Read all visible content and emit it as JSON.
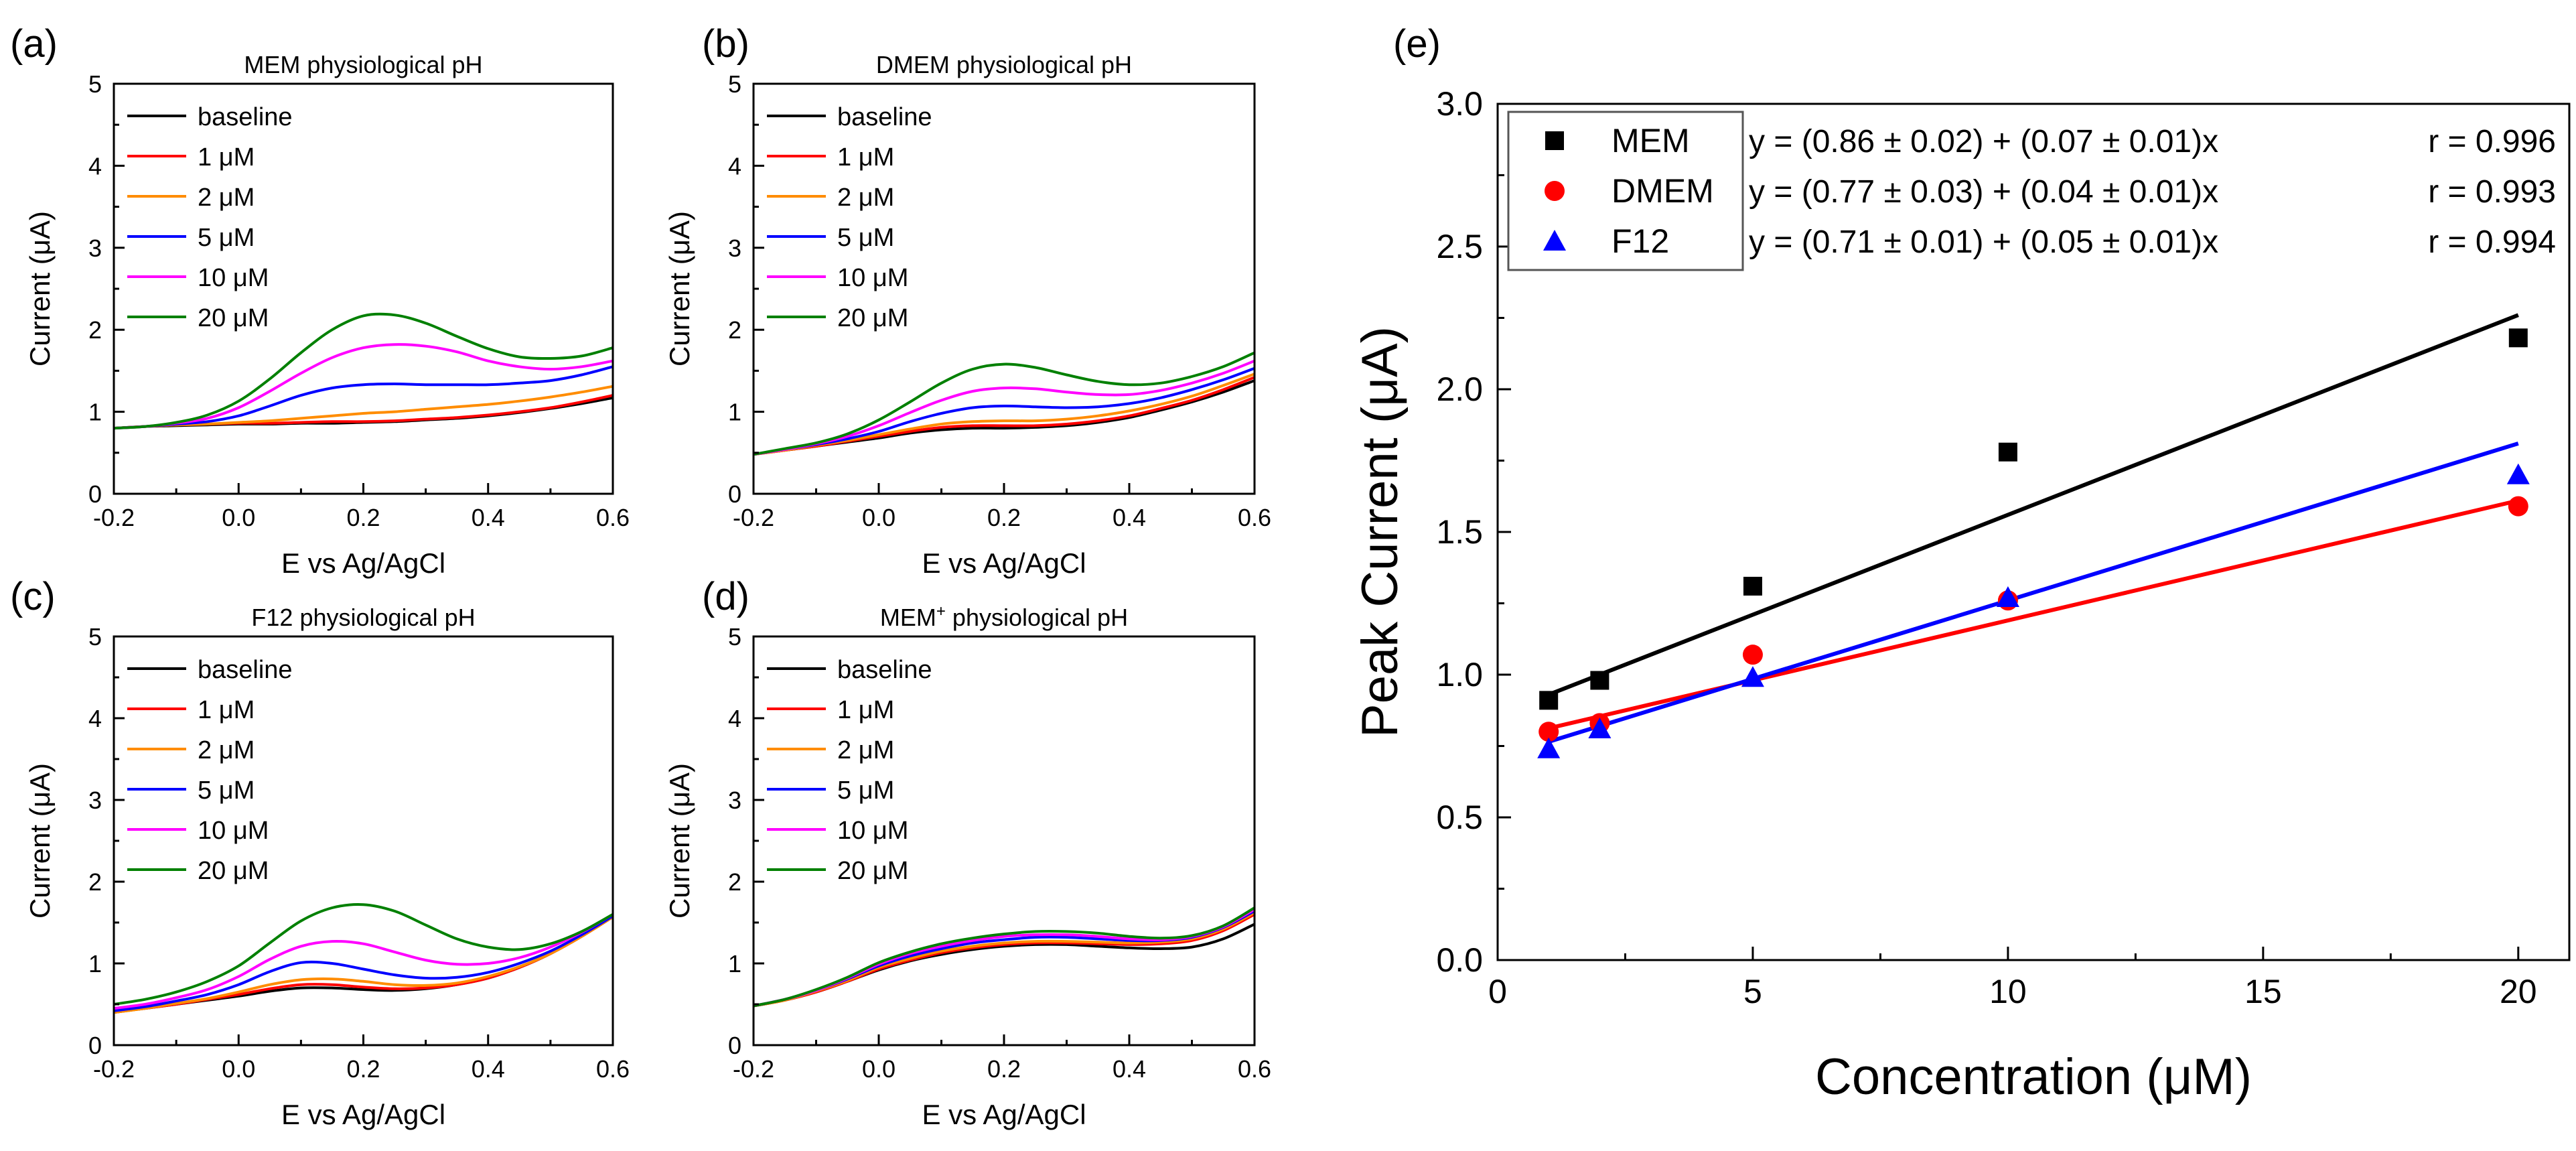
{
  "chart_data": [
    {
      "panel_label": "(a)",
      "type": "line",
      "title": "MEM physiological pH",
      "xlabel": "E vs Ag/AgCl",
      "ylabel": "Current (μA)",
      "xlim": [
        -0.2,
        0.6
      ],
      "ylim": [
        0,
        5
      ],
      "xticks": [
        -0.2,
        0.0,
        0.2,
        0.4,
        0.6
      ],
      "xtick_labels": [
        "-0.2",
        "0.0",
        "0.2",
        "0.4",
        "0.6"
      ],
      "yticks": [
        0,
        1,
        2,
        3,
        4,
        5
      ],
      "ytick_labels": [
        "0",
        "1",
        "2",
        "3",
        "4",
        "5"
      ],
      "legend_position": "top-left",
      "x": [
        -0.2,
        -0.15,
        -0.1,
        -0.05,
        0.0,
        0.05,
        0.1,
        0.15,
        0.2,
        0.25,
        0.3,
        0.35,
        0.4,
        0.45,
        0.5,
        0.55,
        0.6
      ],
      "series": [
        {
          "name": "baseline",
          "color": "#000000",
          "values": [
            0.8,
            0.82,
            0.83,
            0.84,
            0.85,
            0.85,
            0.86,
            0.86,
            0.87,
            0.88,
            0.9,
            0.92,
            0.95,
            0.99,
            1.04,
            1.1,
            1.17
          ]
        },
        {
          "name": "1 μM",
          "color": "#ff0000",
          "values": [
            0.8,
            0.82,
            0.84,
            0.85,
            0.86,
            0.86,
            0.87,
            0.88,
            0.88,
            0.89,
            0.91,
            0.93,
            0.96,
            1.0,
            1.05,
            1.12,
            1.2
          ]
        },
        {
          "name": "2 μM",
          "color": "#ff8c00",
          "values": [
            0.8,
            0.82,
            0.84,
            0.85,
            0.87,
            0.89,
            0.92,
            0.95,
            0.98,
            1.0,
            1.03,
            1.06,
            1.09,
            1.13,
            1.18,
            1.24,
            1.31
          ]
        },
        {
          "name": "5 μM",
          "color": "#0000ff",
          "values": [
            0.8,
            0.82,
            0.85,
            0.88,
            0.95,
            1.07,
            1.2,
            1.29,
            1.33,
            1.34,
            1.33,
            1.33,
            1.33,
            1.35,
            1.38,
            1.45,
            1.55
          ]
        },
        {
          "name": "10 μM",
          "color": "#ff00ff",
          "values": [
            0.8,
            0.82,
            0.86,
            0.92,
            1.05,
            1.25,
            1.47,
            1.66,
            1.78,
            1.82,
            1.8,
            1.73,
            1.62,
            1.55,
            1.52,
            1.55,
            1.62
          ]
        },
        {
          "name": "20 μM",
          "color": "#008000",
          "values": [
            0.8,
            0.82,
            0.87,
            0.96,
            1.13,
            1.4,
            1.72,
            2.0,
            2.17,
            2.18,
            2.08,
            1.92,
            1.77,
            1.67,
            1.65,
            1.68,
            1.78
          ]
        }
      ]
    },
    {
      "panel_label": "(b)",
      "type": "line",
      "title": "DMEM physiological pH",
      "xlabel": "E vs Ag/AgCl",
      "ylabel": "Current (μA)",
      "xlim": [
        -0.2,
        0.6
      ],
      "ylim": [
        0,
        5
      ],
      "xticks": [
        -0.2,
        0.0,
        0.2,
        0.4,
        0.6
      ],
      "xtick_labels": [
        "-0.2",
        "0.0",
        "0.2",
        "0.4",
        "0.6"
      ],
      "yticks": [
        0,
        1,
        2,
        3,
        4,
        5
      ],
      "ytick_labels": [
        "0",
        "1",
        "2",
        "3",
        "4",
        "5"
      ],
      "legend_position": "top-left",
      "x": [
        -0.2,
        -0.15,
        -0.1,
        -0.05,
        0.0,
        0.05,
        0.1,
        0.15,
        0.2,
        0.25,
        0.3,
        0.35,
        0.4,
        0.45,
        0.5,
        0.55,
        0.6
      ],
      "series": [
        {
          "name": "baseline",
          "color": "#000000",
          "values": [
            0.48,
            0.53,
            0.58,
            0.63,
            0.68,
            0.74,
            0.78,
            0.8,
            0.8,
            0.81,
            0.83,
            0.87,
            0.93,
            1.02,
            1.12,
            1.24,
            1.38
          ]
        },
        {
          "name": "1 μM",
          "color": "#ff0000",
          "values": [
            0.48,
            0.53,
            0.58,
            0.64,
            0.7,
            0.76,
            0.81,
            0.83,
            0.83,
            0.83,
            0.85,
            0.89,
            0.95,
            1.04,
            1.14,
            1.27,
            1.42
          ]
        },
        {
          "name": "2 μM",
          "color": "#ff8c00",
          "values": [
            0.48,
            0.53,
            0.59,
            0.65,
            0.72,
            0.79,
            0.85,
            0.88,
            0.89,
            0.89,
            0.91,
            0.95,
            1.01,
            1.09,
            1.19,
            1.32,
            1.46
          ]
        },
        {
          "name": "5 μM",
          "color": "#0000ff",
          "values": [
            0.48,
            0.54,
            0.6,
            0.67,
            0.76,
            0.88,
            0.98,
            1.05,
            1.07,
            1.06,
            1.05,
            1.06,
            1.1,
            1.17,
            1.27,
            1.39,
            1.53
          ]
        },
        {
          "name": "10 μM",
          "color": "#ff00ff",
          "values": [
            0.48,
            0.54,
            0.61,
            0.7,
            0.83,
            0.99,
            1.14,
            1.25,
            1.29,
            1.28,
            1.24,
            1.21,
            1.21,
            1.26,
            1.35,
            1.47,
            1.62
          ]
        },
        {
          "name": "20 μM",
          "color": "#008000",
          "values": [
            0.48,
            0.55,
            0.62,
            0.73,
            0.9,
            1.12,
            1.35,
            1.52,
            1.58,
            1.54,
            1.45,
            1.37,
            1.33,
            1.35,
            1.43,
            1.55,
            1.72
          ]
        }
      ]
    },
    {
      "panel_label": "(c)",
      "type": "line",
      "title": "F12 physiological pH",
      "xlabel": "E vs Ag/AgCl",
      "ylabel": "Current (μA)",
      "xlim": [
        -0.2,
        0.6
      ],
      "ylim": [
        0,
        5
      ],
      "xticks": [
        -0.2,
        0.0,
        0.2,
        0.4,
        0.6
      ],
      "xtick_labels": [
        "-0.2",
        "0.0",
        "0.2",
        "0.4",
        "0.6"
      ],
      "yticks": [
        0,
        1,
        2,
        3,
        4,
        5
      ],
      "ytick_labels": [
        "0",
        "1",
        "2",
        "3",
        "4",
        "5"
      ],
      "legend_position": "top-left",
      "x": [
        -0.2,
        -0.15,
        -0.1,
        -0.05,
        0.0,
        0.05,
        0.1,
        0.15,
        0.2,
        0.25,
        0.3,
        0.35,
        0.4,
        0.45,
        0.5,
        0.55,
        0.6
      ],
      "series": [
        {
          "name": "baseline",
          "color": "#000000",
          "values": [
            0.4,
            0.45,
            0.5,
            0.55,
            0.6,
            0.66,
            0.7,
            0.7,
            0.68,
            0.67,
            0.69,
            0.74,
            0.82,
            0.95,
            1.12,
            1.33,
            1.57
          ]
        },
        {
          "name": "1 μM",
          "color": "#ff0000",
          "values": [
            0.4,
            0.45,
            0.5,
            0.56,
            0.62,
            0.69,
            0.74,
            0.74,
            0.71,
            0.69,
            0.7,
            0.74,
            0.82,
            0.95,
            1.12,
            1.33,
            1.57
          ]
        },
        {
          "name": "2 μM",
          "color": "#ff8c00",
          "values": [
            0.4,
            0.45,
            0.51,
            0.57,
            0.65,
            0.74,
            0.8,
            0.81,
            0.78,
            0.74,
            0.73,
            0.76,
            0.84,
            0.96,
            1.12,
            1.33,
            1.57
          ]
        },
        {
          "name": "5 μM",
          "color": "#0000ff",
          "values": [
            0.42,
            0.47,
            0.54,
            0.62,
            0.74,
            0.9,
            1.01,
            1.0,
            0.93,
            0.86,
            0.82,
            0.83,
            0.89,
            1.0,
            1.15,
            1.35,
            1.58
          ]
        },
        {
          "name": "10 μM",
          "color": "#ff00ff",
          "values": [
            0.45,
            0.5,
            0.58,
            0.68,
            0.84,
            1.05,
            1.21,
            1.27,
            1.24,
            1.14,
            1.04,
            0.99,
            1.0,
            1.07,
            1.2,
            1.38,
            1.6
          ]
        },
        {
          "name": "20 μM",
          "color": "#008000",
          "values": [
            0.5,
            0.56,
            0.65,
            0.78,
            0.97,
            1.25,
            1.52,
            1.68,
            1.72,
            1.64,
            1.47,
            1.3,
            1.2,
            1.17,
            1.24,
            1.39,
            1.6
          ]
        }
      ]
    },
    {
      "panel_label": "(d)",
      "type": "line",
      "title": "MEM",
      "title_superscript": "+",
      "title_suffix": " physiological pH",
      "xlabel": "E vs Ag/AgCl",
      "ylabel": "Current (μA)",
      "xlim": [
        -0.2,
        0.6
      ],
      "ylim": [
        0,
        5
      ],
      "xticks": [
        -0.2,
        0.0,
        0.2,
        0.4,
        0.6
      ],
      "xtick_labels": [
        "-0.2",
        "0.0",
        "0.2",
        "0.4",
        "0.6"
      ],
      "yticks": [
        0,
        1,
        2,
        3,
        4,
        5
      ],
      "ytick_labels": [
        "0",
        "1",
        "2",
        "3",
        "4",
        "5"
      ],
      "legend_position": "top-left",
      "x": [
        -0.2,
        -0.15,
        -0.1,
        -0.05,
        0.0,
        0.05,
        0.1,
        0.15,
        0.2,
        0.25,
        0.3,
        0.35,
        0.4,
        0.45,
        0.5,
        0.55,
        0.6
      ],
      "series": [
        {
          "name": "baseline",
          "color": "#000000",
          "values": [
            0.48,
            0.55,
            0.65,
            0.78,
            0.92,
            1.03,
            1.11,
            1.17,
            1.21,
            1.23,
            1.23,
            1.21,
            1.19,
            1.18,
            1.2,
            1.3,
            1.48
          ]
        },
        {
          "name": "1 μM",
          "color": "#ff0000",
          "values": [
            0.48,
            0.55,
            0.65,
            0.78,
            0.93,
            1.04,
            1.13,
            1.19,
            1.23,
            1.25,
            1.25,
            1.24,
            1.23,
            1.24,
            1.28,
            1.4,
            1.6
          ]
        },
        {
          "name": "2 μM",
          "color": "#ff8c00",
          "values": [
            0.48,
            0.55,
            0.66,
            0.79,
            0.95,
            1.06,
            1.15,
            1.21,
            1.25,
            1.27,
            1.27,
            1.26,
            1.25,
            1.26,
            1.3,
            1.42,
            1.62
          ]
        },
        {
          "name": "5 μM",
          "color": "#0000ff",
          "values": [
            0.48,
            0.56,
            0.67,
            0.81,
            0.97,
            1.09,
            1.18,
            1.25,
            1.29,
            1.32,
            1.32,
            1.3,
            1.28,
            1.28,
            1.32,
            1.44,
            1.64
          ]
        },
        {
          "name": "10 μM",
          "color": "#ff00ff",
          "values": [
            0.48,
            0.56,
            0.67,
            0.82,
            0.99,
            1.12,
            1.21,
            1.28,
            1.33,
            1.35,
            1.35,
            1.33,
            1.3,
            1.29,
            1.33,
            1.45,
            1.66
          ]
        },
        {
          "name": "20 μM",
          "color": "#008000",
          "values": [
            0.48,
            0.56,
            0.68,
            0.83,
            1.01,
            1.14,
            1.24,
            1.31,
            1.36,
            1.39,
            1.39,
            1.37,
            1.33,
            1.31,
            1.34,
            1.46,
            1.68
          ]
        }
      ]
    },
    {
      "panel_label": "(e)",
      "type": "scatter",
      "title": "",
      "xlabel": "Concentration (μM)",
      "ylabel": "Peak Current (μA)",
      "xlim": [
        0,
        21
      ],
      "ylim": [
        0,
        3
      ],
      "xticks": [
        0,
        5,
        10,
        15,
        20
      ],
      "xtick_labels": [
        "0",
        "5",
        "10",
        "15",
        "20"
      ],
      "yticks": [
        0,
        0.5,
        1.0,
        1.5,
        2.0,
        2.5,
        3.0
      ],
      "ytick_labels": [
        "0.0",
        "0.5",
        "1.0",
        "1.5",
        "2.0",
        "2.5",
        "3.0"
      ],
      "legend_position": "top-left",
      "x": [
        1,
        2,
        5,
        10,
        20
      ],
      "series": [
        {
          "name": "MEM",
          "color": "#000000",
          "marker": "square",
          "values": [
            0.91,
            0.98,
            1.31,
            1.78,
            2.18
          ],
          "fit": {
            "intercept": 0.86,
            "slope": 0.07,
            "equation": "y = (0.86 ± 0.02) + (0.07 ± 0.01)x",
            "r": "r = 0.996"
          }
        },
        {
          "name": "DMEM",
          "color": "#ff0000",
          "marker": "circle",
          "values": [
            0.8,
            0.83,
            1.07,
            1.26,
            1.59
          ],
          "fit": {
            "intercept": 0.77,
            "slope": 0.042,
            "equation": "y = (0.77 ± 0.03) + (0.04 ± 0.01)x",
            "r": "r = 0.993"
          }
        },
        {
          "name": "F12",
          "color": "#0000ff",
          "marker": "triangle",
          "values": [
            0.74,
            0.81,
            0.99,
            1.27,
            1.7
          ],
          "fit": {
            "intercept": 0.71,
            "slope": 0.055,
            "equation": "y = (0.71 ± 0.01) + (0.05 ± 0.01)x",
            "r": "r = 0.994"
          }
        }
      ]
    }
  ]
}
